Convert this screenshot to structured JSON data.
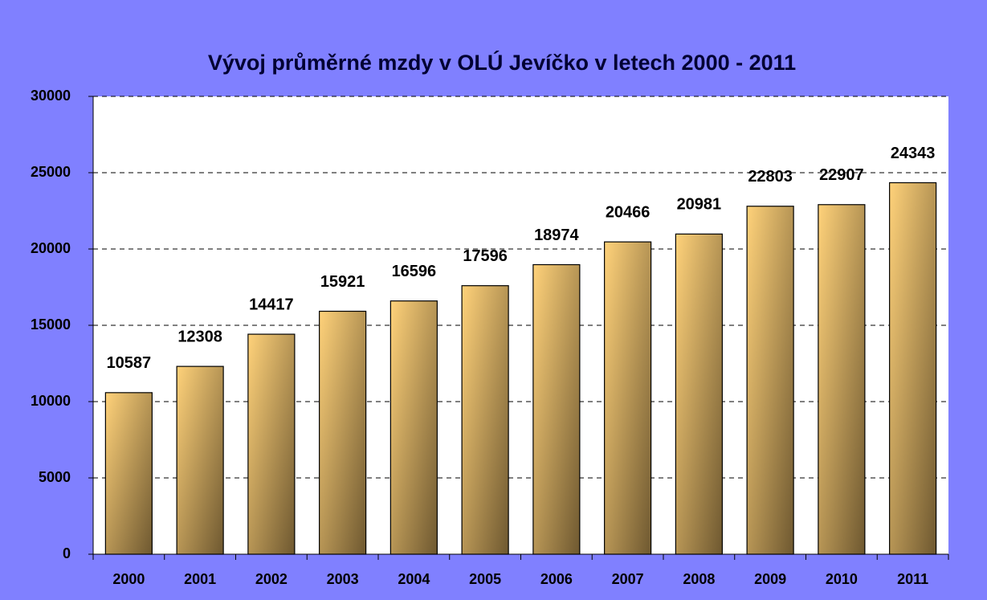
{
  "chart_data": {
    "type": "bar",
    "title": "Vývoj průměrné mzdy v OLÚ Jevíčko v letech 2000 - 2011",
    "categories": [
      "2000",
      "2001",
      "2002",
      "2003",
      "2004",
      "2005",
      "2006",
      "2007",
      "2008",
      "2009",
      "2010",
      "2011"
    ],
    "values": [
      10587,
      12308,
      14417,
      15921,
      16596,
      17596,
      18974,
      20466,
      20981,
      22803,
      22907,
      24343
    ],
    "color": "#ffd27a",
    "ylim": [
      0,
      30000
    ],
    "yticks": [
      0,
      5000,
      10000,
      15000,
      20000,
      25000,
      30000
    ],
    "grid": true
  }
}
